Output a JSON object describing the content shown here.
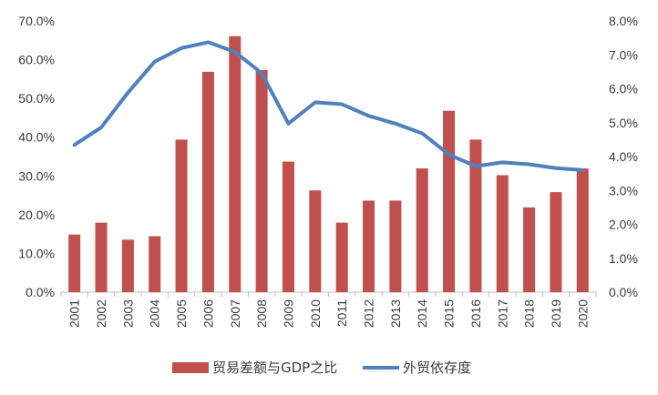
{
  "chart_data": {
    "type": "bar",
    "categories": [
      "2001",
      "2002",
      "2003",
      "2004",
      "2005",
      "2006",
      "2007",
      "2008",
      "2009",
      "2010",
      "2011",
      "2012",
      "2013",
      "2014",
      "2015",
      "2016",
      "2017",
      "2018",
      "2019",
      "2020"
    ],
    "series": [
      {
        "name": "贸易差额与GDP之比",
        "type": "bar",
        "axis": "right",
        "color": "#C0504D",
        "values": [
          1.7,
          2.05,
          1.55,
          1.65,
          4.5,
          6.5,
          7.55,
          6.55,
          3.85,
          3.0,
          2.05,
          2.7,
          2.7,
          3.65,
          5.35,
          4.5,
          3.45,
          2.5,
          2.95,
          3.65
        ]
      },
      {
        "name": "外贸依存度",
        "type": "line",
        "axis": "left",
        "color": "#4F81BD",
        "values": [
          38.0,
          42.5,
          51.5,
          59.5,
          63.0,
          64.5,
          62.0,
          56.5,
          43.5,
          49.0,
          48.5,
          45.5,
          43.5,
          41.0,
          35.5,
          32.5,
          33.5,
          33.0,
          32.0,
          31.5
        ]
      }
    ],
    "y_left": {
      "ylim": [
        0,
        70
      ],
      "ticks": [
        "0.0%",
        "10.0%",
        "20.0%",
        "30.0%",
        "40.0%",
        "50.0%",
        "60.0%",
        "70.0%"
      ]
    },
    "y_right": {
      "ylim": [
        0,
        8
      ],
      "ticks": [
        "0.0%",
        "1.0%",
        "2.0%",
        "3.0%",
        "4.0%",
        "5.0%",
        "6.0%",
        "7.0%",
        "8.0%"
      ]
    },
    "grid": false,
    "legend": {
      "placement": "bottom-center",
      "entries": [
        "贸易差额与GDP之比",
        "外贸依存度"
      ]
    }
  }
}
